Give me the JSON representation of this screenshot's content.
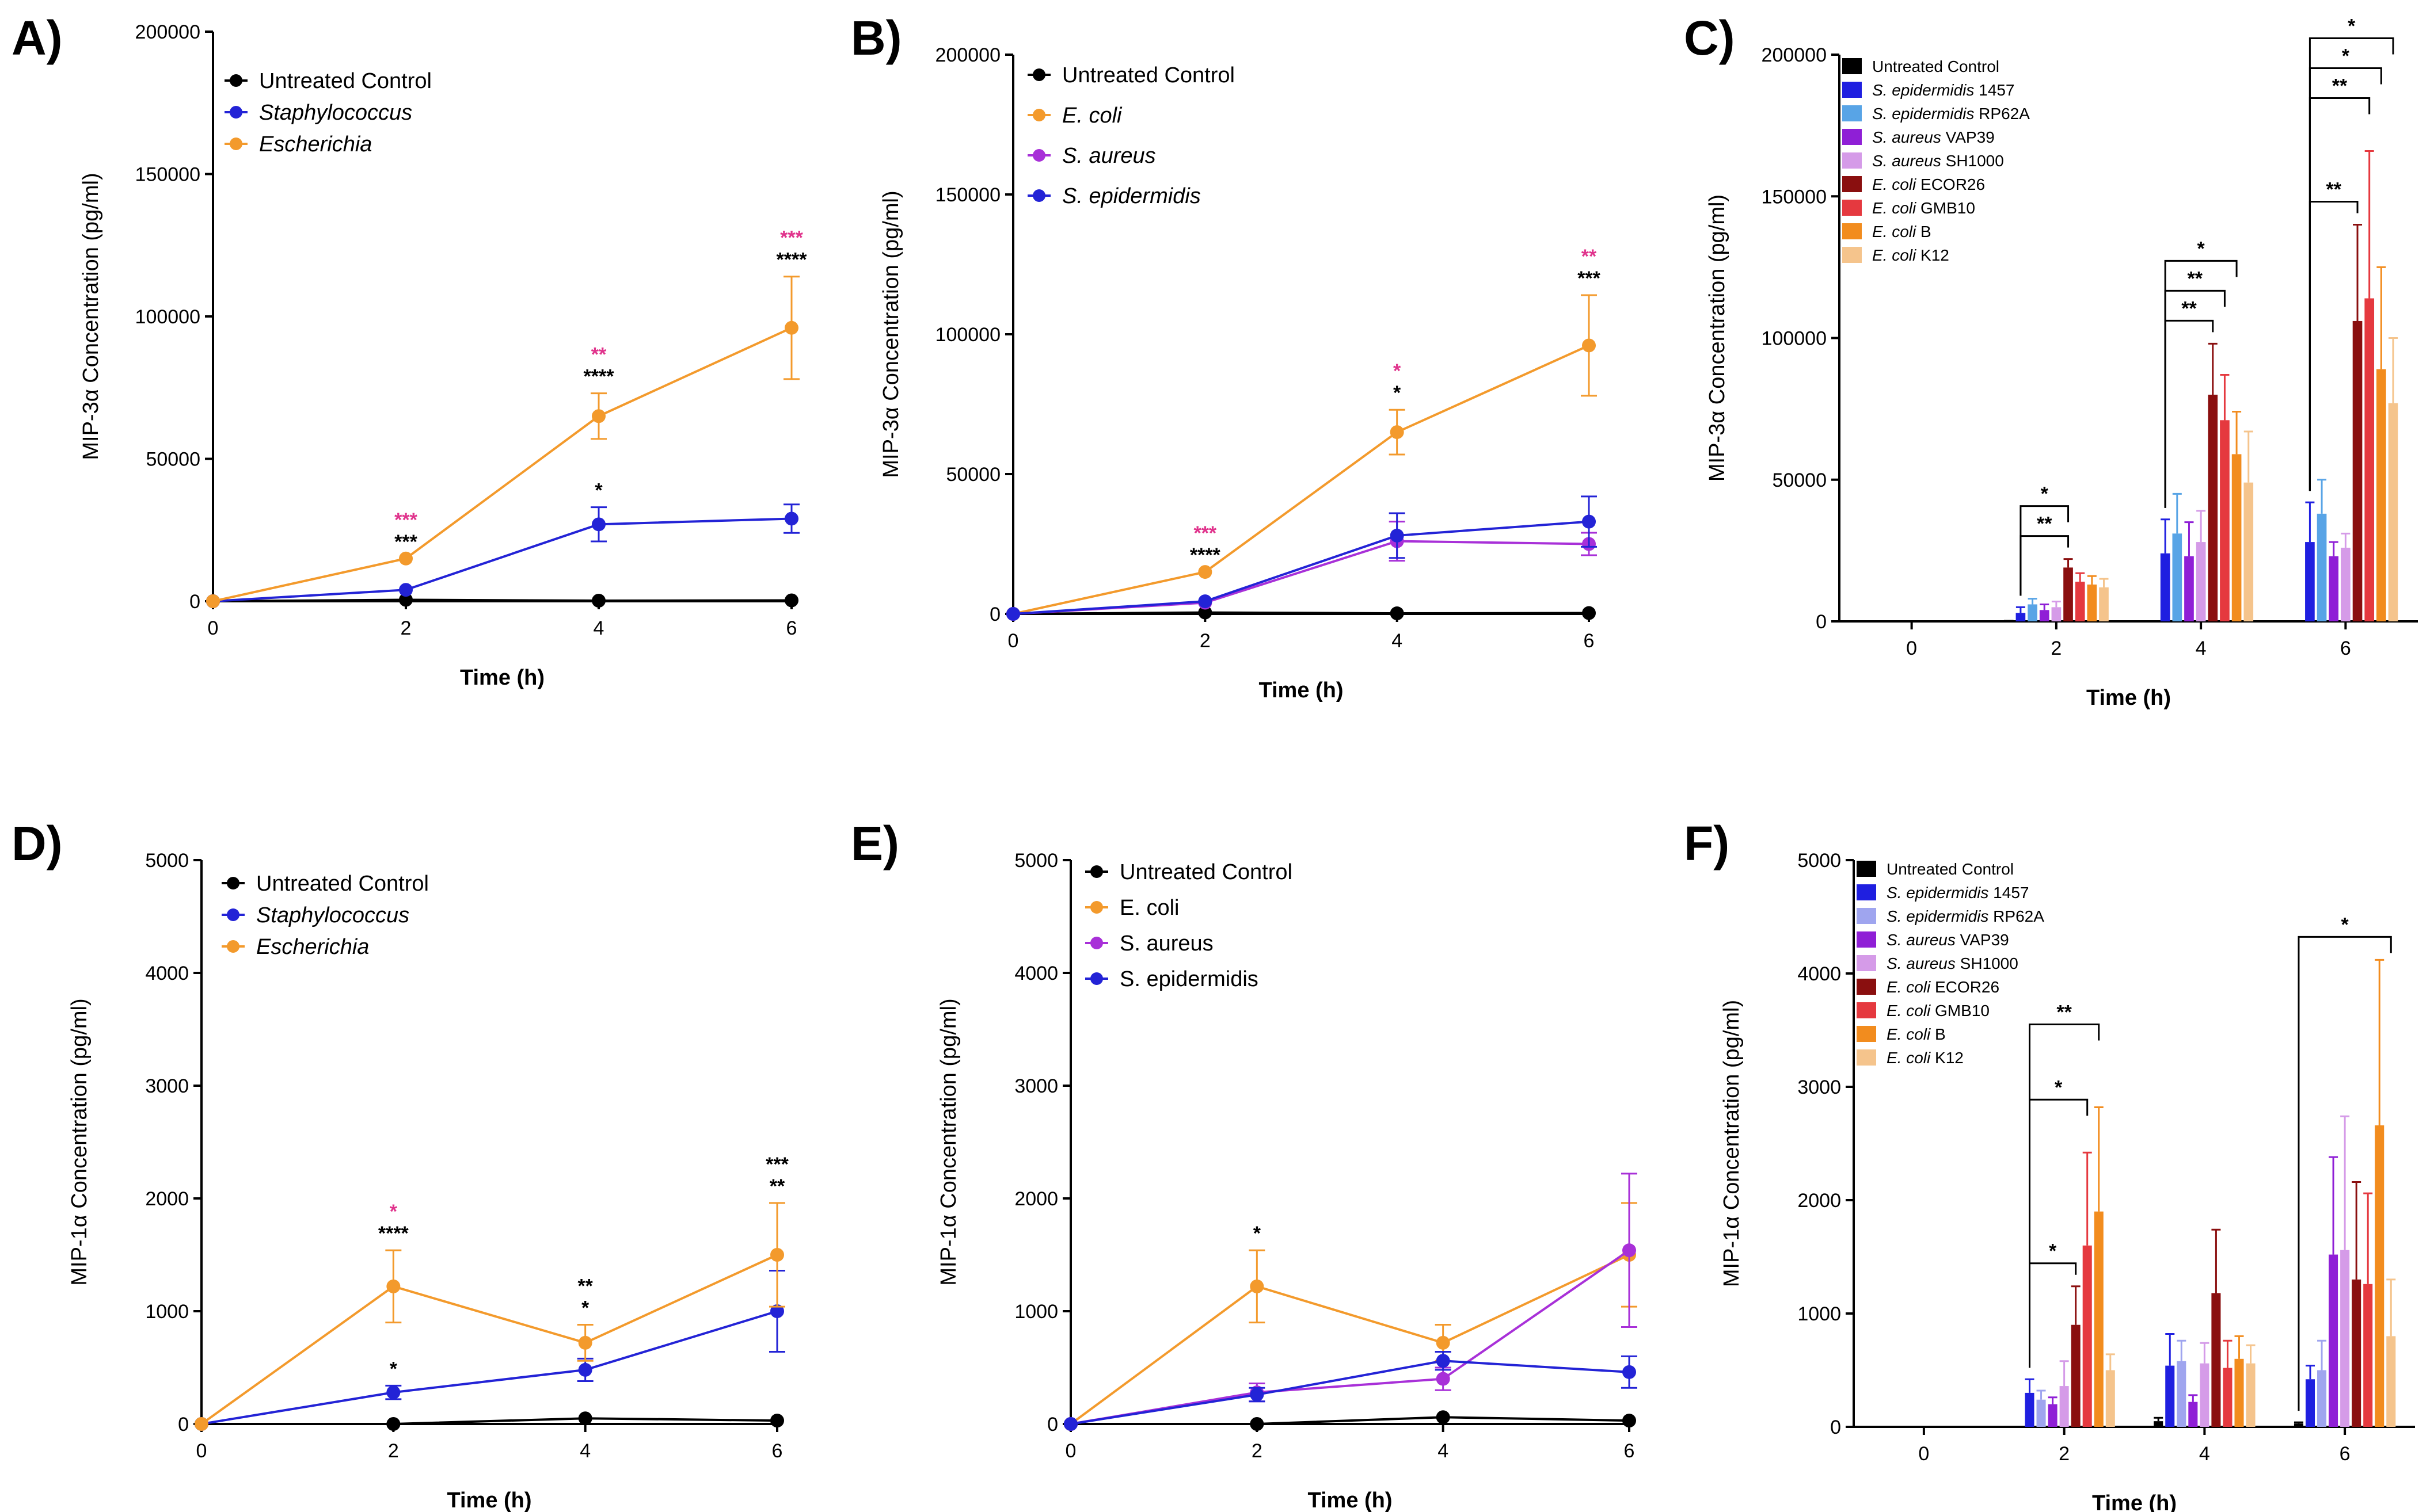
{
  "colors": {
    "untreated": "#000000",
    "staph": "#2323d6",
    "ecoli": "#f39a2c",
    "aureus": "#a830d8",
    "sig_pink": "#e0338c",
    "sig_black": "#000000",
    "bars": [
      "#000000",
      "#1f1fe0",
      "#58a4e6",
      "#8f1fd6",
      "#d59be8",
      "#8a0f0f",
      "#e5393f",
      "#f28c1e",
      "#f5c48c"
    ],
    "bars_f": [
      "#000000",
      "#1f1fe0",
      "#9fa5ef",
      "#8f1fd6",
      "#d59be8",
      "#8a0f0f",
      "#e5393f",
      "#f28c1e",
      "#f5c48c"
    ]
  },
  "chart_data": [
    {
      "panel": "A)",
      "type": "line",
      "ylabel": "MIP-3α Concentration (pg/ml)",
      "xlabel": "Time (h)",
      "ylim": [
        0,
        200000
      ],
      "yticks": [
        0,
        50000,
        100000,
        150000,
        200000
      ],
      "ytick_labels": [
        "0",
        "50000",
        "100000",
        "150000",
        "200000"
      ],
      "xlim": [
        0,
        6
      ],
      "xticks": [
        0,
        2,
        4,
        6
      ],
      "xtick_labels": [
        "0",
        "2",
        "4",
        "6"
      ],
      "series": [
        {
          "name": "Untreated Control",
          "italic": false,
          "color_key": "untreated",
          "x": [
            0,
            2,
            4,
            6
          ],
          "y": [
            0,
            500,
            200,
            300
          ],
          "err": [
            0,
            0,
            0,
            0
          ]
        },
        {
          "name": "Staphylococcus",
          "italic": true,
          "color_key": "staph",
          "x": [
            0,
            2,
            4,
            6
          ],
          "y": [
            0,
            4000,
            27000,
            29000
          ],
          "err": [
            0,
            0,
            6000,
            5000
          ]
        },
        {
          "name": "Escherichia",
          "italic": true,
          "color_key": "ecoli",
          "x": [
            0,
            2,
            4,
            6
          ],
          "y": [
            0,
            15000,
            65000,
            96000
          ],
          "err": [
            0,
            0,
            8000,
            18000
          ]
        }
      ],
      "annotations": [
        {
          "x": 2,
          "lines": [
            {
              "text": "***",
              "color_key": "sig_pink"
            },
            {
              "text": "***",
              "color_key": "sig_black"
            }
          ]
        },
        {
          "x": 4,
          "lines": [
            {
              "text": "**",
              "color_key": "sig_pink"
            },
            {
              "text": "****",
              "color_key": "sig_black"
            }
          ]
        },
        {
          "x": 4,
          "below": true,
          "lines": [
            {
              "text": "*",
              "color_key": "sig_black"
            }
          ]
        },
        {
          "x": 6,
          "lines": [
            {
              "text": "***",
              "color_key": "sig_pink"
            },
            {
              "text": "****",
              "color_key": "sig_black"
            }
          ]
        }
      ]
    },
    {
      "panel": "B)",
      "type": "line",
      "ylabel": "MIP-3α Concentration (pg/ml)",
      "xlabel": "Time (h)",
      "ylim": [
        0,
        200000
      ],
      "yticks": [
        0,
        50000,
        100000,
        150000,
        200000
      ],
      "ytick_labels": [
        "0",
        "50000",
        "100000",
        "150000",
        "200000"
      ],
      "xlim": [
        0,
        6
      ],
      "xticks": [
        0,
        2,
        4,
        6
      ],
      "xtick_labels": [
        "0",
        "2",
        "4",
        "6"
      ],
      "series": [
        {
          "name": "Untreated Control",
          "italic": false,
          "color_key": "untreated",
          "x": [
            0,
            2,
            4,
            6
          ],
          "y": [
            0,
            500,
            200,
            300
          ],
          "err": [
            0,
            0,
            0,
            0
          ]
        },
        {
          "name": "E. coli",
          "italic": true,
          "color_key": "ecoli",
          "x": [
            0,
            2,
            4,
            6
          ],
          "y": [
            0,
            15000,
            65000,
            96000
          ],
          "err": [
            0,
            0,
            8000,
            18000
          ]
        },
        {
          "name": "S. aureus",
          "italic": true,
          "color_key": "aureus",
          "x": [
            0,
            2,
            4,
            6
          ],
          "y": [
            0,
            4000,
            26000,
            25000
          ],
          "err": [
            0,
            0,
            7000,
            4000
          ]
        },
        {
          "name": "S. epidermidis",
          "italic": true,
          "color_key": "staph",
          "x": [
            0,
            2,
            4,
            6
          ],
          "y": [
            0,
            4500,
            28000,
            33000
          ],
          "err": [
            0,
            0,
            8000,
            9000
          ]
        }
      ],
      "annotations": [
        {
          "x": 2,
          "lines": [
            {
              "text": "***",
              "color_key": "sig_pink"
            },
            {
              "text": "****",
              "color_key": "sig_black"
            }
          ]
        },
        {
          "x": 4,
          "lines": [
            {
              "text": "*",
              "color_key": "sig_pink"
            },
            {
              "text": "*",
              "color_key": "sig_black"
            }
          ]
        },
        {
          "x": 6,
          "lines": [
            {
              "text": "**",
              "color_key": "sig_pink"
            },
            {
              "text": "***",
              "color_key": "sig_black"
            }
          ]
        }
      ]
    },
    {
      "panel": "C)",
      "type": "bar",
      "ylabel": "MIP-3α Concentration (pg/ml)",
      "xlabel": "Time (h)",
      "ylim": [
        0,
        200000
      ],
      "yticks": [
        0,
        50000,
        100000,
        150000,
        200000
      ],
      "ytick_labels": [
        "0",
        "50000",
        "100000",
        "150000",
        "200000"
      ],
      "categories": [
        "0",
        "2",
        "4",
        "6"
      ],
      "color_set": "bars",
      "series": [
        {
          "prefix": "",
          "name": "Untreated Control",
          "values": [
            0,
            500,
            300,
            300
          ],
          "err": [
            0,
            0,
            0,
            0
          ]
        },
        {
          "prefix": "S. epidermidis",
          "name": " 1457",
          "values": [
            0,
            3000,
            24000,
            28000
          ],
          "err": [
            0,
            2000,
            12000,
            14000
          ]
        },
        {
          "prefix": "S. epidermidis",
          "name": " RP62A",
          "values": [
            0,
            6000,
            31000,
            38000
          ],
          "err": [
            0,
            2000,
            14000,
            12000
          ]
        },
        {
          "prefix": "S. aureus",
          "name": " VAP39",
          "values": [
            0,
            4000,
            23000,
            23000
          ],
          "err": [
            0,
            2000,
            12000,
            5000
          ]
        },
        {
          "prefix": "S. aureus",
          "name": " SH1000",
          "values": [
            0,
            5000,
            28000,
            26000
          ],
          "err": [
            0,
            2000,
            11000,
            5000
          ]
        },
        {
          "prefix": "E. coli",
          "name": " ECOR26",
          "values": [
            0,
            19000,
            80000,
            106000
          ],
          "err": [
            0,
            3000,
            18000,
            34000
          ]
        },
        {
          "prefix": "E. coli",
          "name": " GMB10",
          "values": [
            0,
            14000,
            71000,
            114000
          ],
          "err": [
            0,
            3000,
            16000,
            52000
          ]
        },
        {
          "prefix": "E. coli",
          "name": " B",
          "values": [
            0,
            13000,
            59000,
            89000
          ],
          "err": [
            0,
            3000,
            15000,
            36000
          ]
        },
        {
          "prefix": "E. coli",
          "name": " K12",
          "values": [
            0,
            12000,
            49000,
            77000
          ],
          "err": [
            0,
            3000,
            18000,
            23000
          ]
        }
      ],
      "brackets": [
        {
          "cat": 1,
          "from": 1,
          "to": 5,
          "level": 0,
          "text": "**"
        },
        {
          "cat": 1,
          "from": 1,
          "to": 5,
          "level": 1,
          "text": "*"
        },
        {
          "cat": 2,
          "from": 1,
          "to": 5,
          "level": 0,
          "text": "**"
        },
        {
          "cat": 2,
          "from": 1,
          "to": 6,
          "level": 1,
          "text": "**"
        },
        {
          "cat": 2,
          "from": 1,
          "to": 7,
          "level": 2,
          "text": "*"
        },
        {
          "cat": 3,
          "from": 1,
          "to": 5,
          "level": 0,
          "text": "**"
        },
        {
          "cat": 3,
          "from": 1,
          "to": 6,
          "level": 1,
          "text": "**"
        },
        {
          "cat": 3,
          "from": 1,
          "to": 7,
          "level": 2,
          "text": "*"
        },
        {
          "cat": 3,
          "from": 1,
          "to": 8,
          "level": 3,
          "text": "*"
        }
      ]
    },
    {
      "panel": "D)",
      "type": "line",
      "ylabel": "MIP-1α Concentration (pg/ml)",
      "xlabel": "Time (h)",
      "ylim": [
        0,
        5000
      ],
      "yticks": [
        0,
        1000,
        2000,
        3000,
        4000,
        5000
      ],
      "ytick_labels": [
        "0",
        "1000",
        "2000",
        "3000",
        "4000",
        "5000"
      ],
      "xlim": [
        0,
        6
      ],
      "xticks": [
        0,
        2,
        4,
        6
      ],
      "xtick_labels": [
        "0",
        "2",
        "4",
        "6"
      ],
      "series": [
        {
          "name": "Untreated Control",
          "italic": false,
          "color_key": "untreated",
          "x": [
            0,
            2,
            4,
            6
          ],
          "y": [
            0,
            0,
            50,
            30
          ],
          "err": [
            0,
            0,
            0,
            0
          ]
        },
        {
          "name": "Staphylococcus",
          "italic": true,
          "color_key": "staph",
          "x": [
            0,
            2,
            4,
            6
          ],
          "y": [
            0,
            280,
            480,
            1000
          ],
          "err": [
            0,
            60,
            100,
            360
          ]
        },
        {
          "name": "Escherichia",
          "italic": true,
          "color_key": "ecoli",
          "x": [
            0,
            2,
            4,
            6
          ],
          "y": [
            0,
            1220,
            720,
            1500
          ],
          "err": [
            0,
            320,
            160,
            460
          ]
        }
      ],
      "annotations": [
        {
          "x": 2,
          "lines": [
            {
              "text": "*",
              "color_key": "sig_pink"
            },
            {
              "text": "****",
              "color_key": "sig_black"
            }
          ]
        },
        {
          "x": 2,
          "below": true,
          "lines": [
            {
              "text": "*",
              "color_key": "sig_black"
            }
          ]
        },
        {
          "x": 4,
          "lines": [
            {
              "text": "**",
              "color_key": "sig_black"
            },
            {
              "text": "*",
              "color_key": "sig_black"
            }
          ]
        },
        {
          "x": 6,
          "lines": [
            {
              "text": "***",
              "color_key": "sig_black"
            },
            {
              "text": "**",
              "color_key": "sig_black"
            }
          ]
        }
      ]
    },
    {
      "panel": "E)",
      "type": "line",
      "ylabel": "MIP-1α Concentration (pg/ml)",
      "xlabel": "Time (h)",
      "ylim": [
        0,
        5000
      ],
      "yticks": [
        0,
        1000,
        2000,
        3000,
        4000,
        5000
      ],
      "ytick_labels": [
        "0",
        "1000",
        "2000",
        "3000",
        "4000",
        "5000"
      ],
      "xlim": [
        0,
        6
      ],
      "xticks": [
        0,
        2,
        4,
        6
      ],
      "xtick_labels": [
        "0",
        "2",
        "4",
        "6"
      ],
      "series": [
        {
          "name": "Untreated Control",
          "italic": false,
          "color_key": "untreated",
          "x": [
            0,
            2,
            4,
            6
          ],
          "y": [
            0,
            0,
            60,
            30
          ],
          "err": [
            0,
            0,
            0,
            0
          ]
        },
        {
          "name": "E. coli",
          "italic": false,
          "color_key": "ecoli",
          "x": [
            0,
            2,
            4,
            6
          ],
          "y": [
            0,
            1220,
            720,
            1500
          ],
          "err": [
            0,
            320,
            160,
            460
          ]
        },
        {
          "name": "S. aureus",
          "italic": false,
          "color_key": "aureus",
          "x": [
            0,
            2,
            4,
            6
          ],
          "y": [
            0,
            280,
            400,
            1540
          ],
          "err": [
            0,
            80,
            100,
            680
          ]
        },
        {
          "name": "S. epidermidis",
          "italic": false,
          "color_key": "staph",
          "x": [
            0,
            2,
            4,
            6
          ],
          "y": [
            0,
            260,
            560,
            460
          ],
          "err": [
            0,
            60,
            80,
            140
          ]
        }
      ],
      "annotations": [
        {
          "x": 2,
          "lines": [
            {
              "text": "*",
              "color_key": "sig_black"
            }
          ]
        }
      ]
    },
    {
      "panel": "F)",
      "type": "bar",
      "ylabel": "MIP-1α Concentration (pg/ml)",
      "xlabel": "Time (h)",
      "ylim": [
        0,
        5000
      ],
      "yticks": [
        0,
        1000,
        2000,
        3000,
        4000,
        5000
      ],
      "ytick_labels": [
        "0",
        "1000",
        "2000",
        "3000",
        "4000",
        "5000"
      ],
      "categories": [
        "0",
        "2",
        "4",
        "6"
      ],
      "color_set": "bars_f",
      "series": [
        {
          "prefix": "",
          "name": "Untreated Control",
          "values": [
            0,
            0,
            50,
            30
          ],
          "err": [
            0,
            0,
            30,
            10
          ]
        },
        {
          "prefix": "S. epidermidis",
          "name": " 1457",
          "values": [
            0,
            300,
            540,
            420
          ],
          "err": [
            0,
            120,
            280,
            120
          ]
        },
        {
          "prefix": "S. epidermidis",
          "name": " RP62A",
          "values": [
            0,
            240,
            580,
            500
          ],
          "err": [
            0,
            80,
            180,
            260
          ]
        },
        {
          "prefix": "S. aureus",
          "name": " VAP39",
          "values": [
            0,
            200,
            220,
            1520
          ],
          "err": [
            0,
            60,
            60,
            860
          ]
        },
        {
          "prefix": "S. aureus",
          "name": " SH1000",
          "values": [
            0,
            360,
            560,
            1560
          ],
          "err": [
            0,
            220,
            180,
            1180
          ]
        },
        {
          "prefix": "E. coli",
          "name": " ECOR26",
          "values": [
            0,
            900,
            1180,
            1300
          ],
          "err": [
            0,
            340,
            560,
            860
          ]
        },
        {
          "prefix": "E. coli",
          "name": " GMB10",
          "values": [
            0,
            1600,
            520,
            1260
          ],
          "err": [
            0,
            820,
            240,
            800
          ]
        },
        {
          "prefix": "E. coli",
          "name": " B",
          "values": [
            0,
            1900,
            600,
            2660
          ],
          "err": [
            0,
            920,
            200,
            1460
          ]
        },
        {
          "prefix": "E. coli",
          "name": " K12",
          "values": [
            0,
            500,
            560,
            800
          ],
          "err": [
            0,
            140,
            160,
            500
          ]
        }
      ],
      "brackets": [
        {
          "cat": 1,
          "from": 1,
          "to": 5,
          "level": 0,
          "text": "*"
        },
        {
          "cat": 1,
          "from": 1,
          "to": 6,
          "level": 1,
          "text": "*"
        },
        {
          "cat": 1,
          "from": 1,
          "to": 7,
          "level": 2,
          "text": "**"
        },
        {
          "cat": 3,
          "from": 0,
          "to": 8,
          "level": 0,
          "text": "*"
        }
      ]
    }
  ]
}
